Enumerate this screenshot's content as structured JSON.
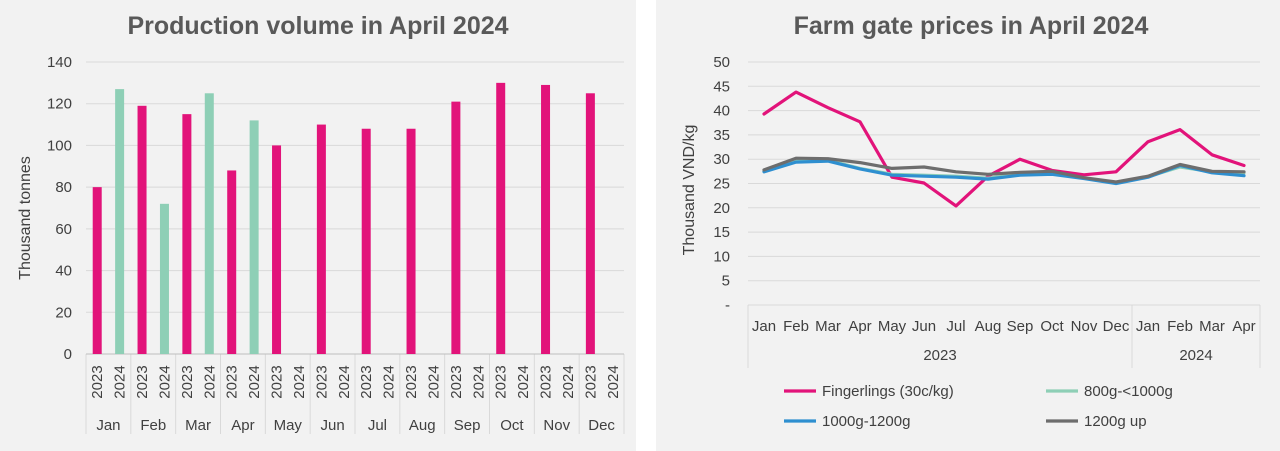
{
  "chart_data": [
    {
      "type": "bar",
      "title": "Production volume in April 2024",
      "ylabel": "Thousand tonnes",
      "xlabel": "",
      "ylim": [
        0,
        140
      ],
      "yticks": [
        "0",
        "20",
        "40",
        "60",
        "80",
        "100",
        "120",
        "140"
      ],
      "categories": [
        "Jan",
        "Feb",
        "Mar",
        "Apr",
        "May",
        "Jun",
        "Jul",
        "Aug",
        "Sep",
        "Oct",
        "Nov",
        "Dec"
      ],
      "subcategories": [
        "2023",
        "2024"
      ],
      "grid": true,
      "series": [
        {
          "key": "2023",
          "color": "#e2137a",
          "values": [
            80,
            119,
            115,
            88,
            100,
            110,
            108,
            108,
            121,
            130,
            129,
            125
          ]
        },
        {
          "key": "2024",
          "color": "#8ecfb6",
          "values": [
            127,
            72,
            125,
            112,
            null,
            null,
            null,
            null,
            null,
            null,
            null,
            null
          ]
        }
      ]
    },
    {
      "type": "line",
      "title": "Farm gate prices in April 2024",
      "ylabel": "Thousand VND/kg",
      "xlabel": "",
      "ylim": [
        0,
        50
      ],
      "yticks": [
        "-",
        "5",
        "10",
        "15",
        "20",
        "25",
        "30",
        "35",
        "40",
        "45",
        "50"
      ],
      "x": [
        "Jan",
        "Feb",
        "Mar",
        "Apr",
        "May",
        "Jun",
        "Jul",
        "Aug",
        "Sep",
        "Oct",
        "Nov",
        "Dec",
        "Jan",
        "Feb",
        "Mar",
        "Apr"
      ],
      "x_groups": [
        {
          "label": "2023",
          "count": 12
        },
        {
          "label": "2024",
          "count": 4
        }
      ],
      "grid": true,
      "legend_position": "bottom",
      "series": [
        {
          "name": "Fingerlings (30c/kg)",
          "color": "#e2137a",
          "values": [
            39.3,
            43.8,
            40.6,
            37.7,
            26.3,
            25.1,
            20.4,
            26.5,
            30.0,
            27.7,
            26.8,
            27.4,
            33.6,
            36.1,
            30.9,
            28.7
          ]
        },
        {
          "name": "800g-<1000g",
          "color": "#8ecfb6",
          "values": [
            27.5,
            29.6,
            29.8,
            28.1,
            26.9,
            26.7,
            26.5,
            26.1,
            26.9,
            27.1,
            26.1,
            25.1,
            26.4,
            28.4,
            27.4,
            27.2
          ]
        },
        {
          "name": "1000g-1200g",
          "color": "#2e8fd0",
          "values": [
            27.4,
            29.4,
            29.6,
            28.0,
            26.7,
            26.5,
            26.3,
            25.9,
            26.7,
            26.9,
            26.0,
            25.0,
            26.3,
            28.7,
            27.2,
            26.6
          ]
        },
        {
          "name": "1200g up",
          "color": "#6d6d6d",
          "values": [
            27.8,
            30.2,
            30.1,
            29.3,
            28.1,
            28.4,
            27.4,
            26.9,
            27.3,
            27.5,
            26.2,
            25.3,
            26.5,
            28.9,
            27.5,
            27.4
          ]
        }
      ]
    }
  ]
}
